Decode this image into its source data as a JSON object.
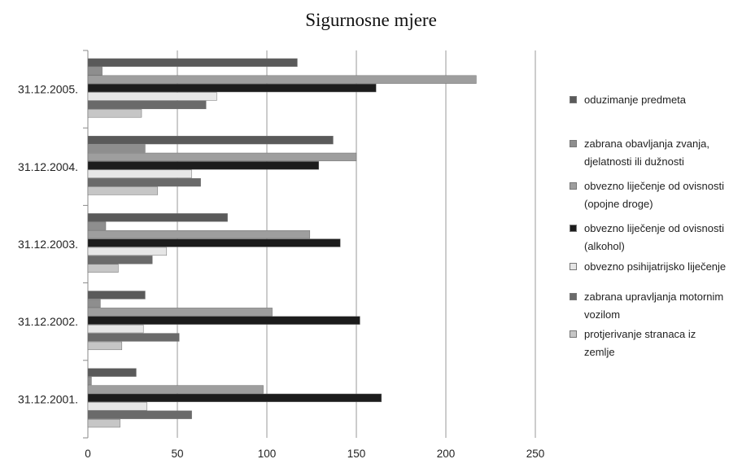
{
  "chart_data": {
    "type": "bar",
    "orientation": "horizontal",
    "title": "Sigurnosne mjere",
    "categories": [
      "31.12.2005.",
      "31.12.2004.",
      "31.12.2003.",
      "31.12.2002.",
      "31.12.2001."
    ],
    "xlim": [
      0,
      250
    ],
    "xticks": [
      0,
      50,
      100,
      150,
      200,
      250
    ],
    "grid": true,
    "legend_position": "right",
    "series": [
      {
        "name": "oduzimanje predmeta",
        "color": "#5a5a5a",
        "values": [
          117,
          137,
          78,
          32,
          27
        ]
      },
      {
        "name": "zabrana obavljanja zvanja,\ndjelatnosti ili dužnosti",
        "color": "#8e8e8e",
        "values": [
          8,
          32,
          10,
          7,
          2
        ]
      },
      {
        "name": "obvezno liječenje od ovisnosti\n(opojne droge)",
        "color": "#9e9e9e",
        "values": [
          217,
          150,
          124,
          103,
          98
        ]
      },
      {
        "name": "obvezno liječenje od ovisnosti\n(alkohol)",
        "color": "#1c1c1c",
        "values": [
          161,
          129,
          141,
          152,
          164
        ]
      },
      {
        "name": "obvezno psihijatrijsko liječenje",
        "color": "#e6e6e6",
        "values": [
          72,
          58,
          44,
          31,
          33
        ]
      },
      {
        "name": "zabrana upravljanja motornim\nvozilom",
        "color": "#6a6a6a",
        "values": [
          66,
          63,
          36,
          51,
          58
        ]
      },
      {
        "name": "protjerivanje stranaca iz\nzemlje",
        "color": "#c6c6c6",
        "values": [
          30,
          39,
          17,
          19,
          18
        ]
      }
    ]
  }
}
